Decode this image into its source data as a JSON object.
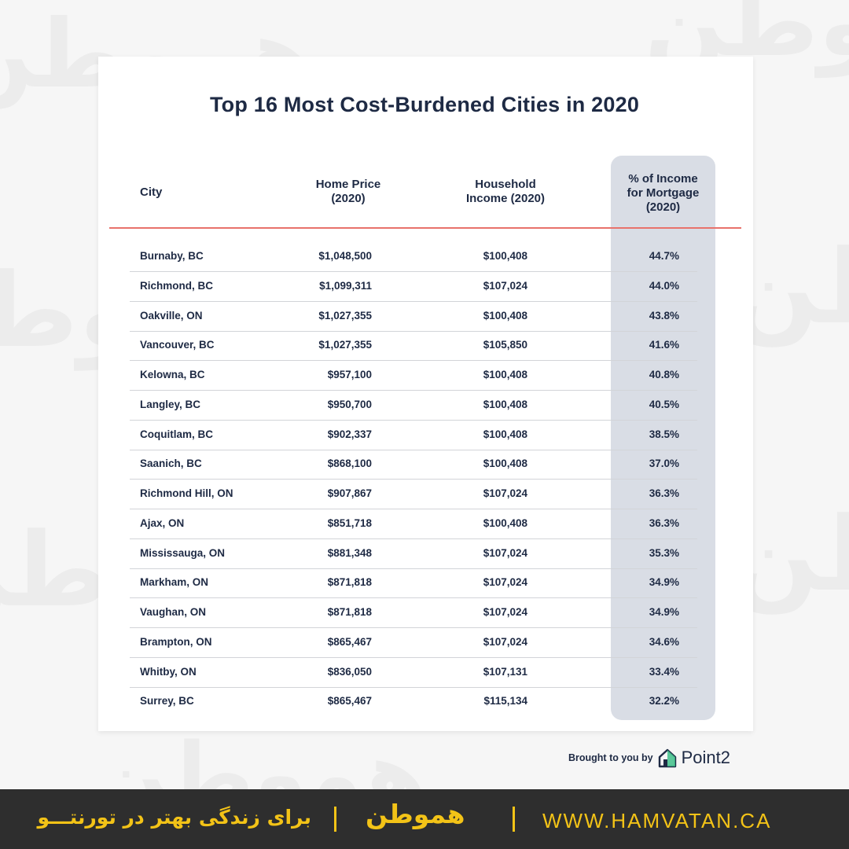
{
  "colors": {
    "background": "#f6f6f6",
    "card": "#ffffff",
    "text": "#1e2a44",
    "header_rule": "#e8726b",
    "highlight_column": "#d9dde5",
    "footer_bg": "#2e2e2e",
    "footer_accent": "#f3c317"
  },
  "watermark": {
    "text": "هموطن"
  },
  "chart_data": {
    "type": "table",
    "title": "Top 16 Most Cost-Burdened Cities in 2020",
    "columns": [
      {
        "key": "city",
        "lines": [
          "City"
        ]
      },
      {
        "key": "home_price",
        "lines": [
          "Home Price",
          "(2020)"
        ]
      },
      {
        "key": "household_income",
        "lines": [
          "Household",
          "Income (2020)"
        ]
      },
      {
        "key": "pct_income_mortgage",
        "lines": [
          "% of Income",
          "for Mortgage",
          "(2020)"
        ]
      }
    ],
    "highlighted_column": "pct_income_mortgage",
    "rows": [
      {
        "city": "Burnaby, BC",
        "home_price": "$1,048,500",
        "household_income": "$100,408",
        "pct": "44.7%"
      },
      {
        "city": "Richmond, BC",
        "home_price": "$1,099,311",
        "household_income": "$107,024",
        "pct": "44.0%"
      },
      {
        "city": "Oakville, ON",
        "home_price": "$1,027,355",
        "household_income": "$100,408",
        "pct": "43.8%"
      },
      {
        "city": "Vancouver, BC",
        "home_price": "$1,027,355",
        "household_income": "$105,850",
        "pct": "41.6%"
      },
      {
        "city": "Kelowna, BC",
        "home_price": "$957,100",
        "household_income": "$100,408",
        "pct": "40.8%"
      },
      {
        "city": "Langley, BC",
        "home_price": "$950,700",
        "household_income": "$100,408",
        "pct": "40.5%"
      },
      {
        "city": "Coquitlam, BC",
        "home_price": "$902,337",
        "household_income": "$100,408",
        "pct": "38.5%"
      },
      {
        "city": "Saanich, BC",
        "home_price": "$868,100",
        "household_income": "$100,408",
        "pct": "37.0%"
      },
      {
        "city": "Richmond Hill, ON",
        "home_price": "$907,867",
        "household_income": "$107,024",
        "pct": "36.3%"
      },
      {
        "city": "Ajax, ON",
        "home_price": "$851,718",
        "household_income": "$100,408",
        "pct": "36.3%"
      },
      {
        "city": "Mississauga, ON",
        "home_price": "$881,348",
        "household_income": "$107,024",
        "pct": "35.3%"
      },
      {
        "city": "Markham, ON",
        "home_price": "$871,818",
        "household_income": "$107,024",
        "pct": "34.9%"
      },
      {
        "city": "Vaughan, ON",
        "home_price": "$871,818",
        "household_income": "$107,024",
        "pct": "34.9%"
      },
      {
        "city": "Brampton, ON",
        "home_price": "$865,467",
        "household_income": "$107,024",
        "pct": "34.6%"
      },
      {
        "city": "Whitby, ON",
        "home_price": "$836,050",
        "household_income": "$107,131",
        "pct": "33.4%"
      },
      {
        "city": "Surrey, BC",
        "home_price": "$865,467",
        "household_income": "$115,134",
        "pct": "32.2%"
      }
    ]
  },
  "credit": {
    "text": "Brought to you by",
    "brand": "Point2",
    "logo_icon": "house-icon"
  },
  "footer": {
    "tagline": "برای زندگی بهتر در تورنتـــو",
    "logo": "هموطن",
    "url": "WWW.HAMVATAN.CA"
  }
}
